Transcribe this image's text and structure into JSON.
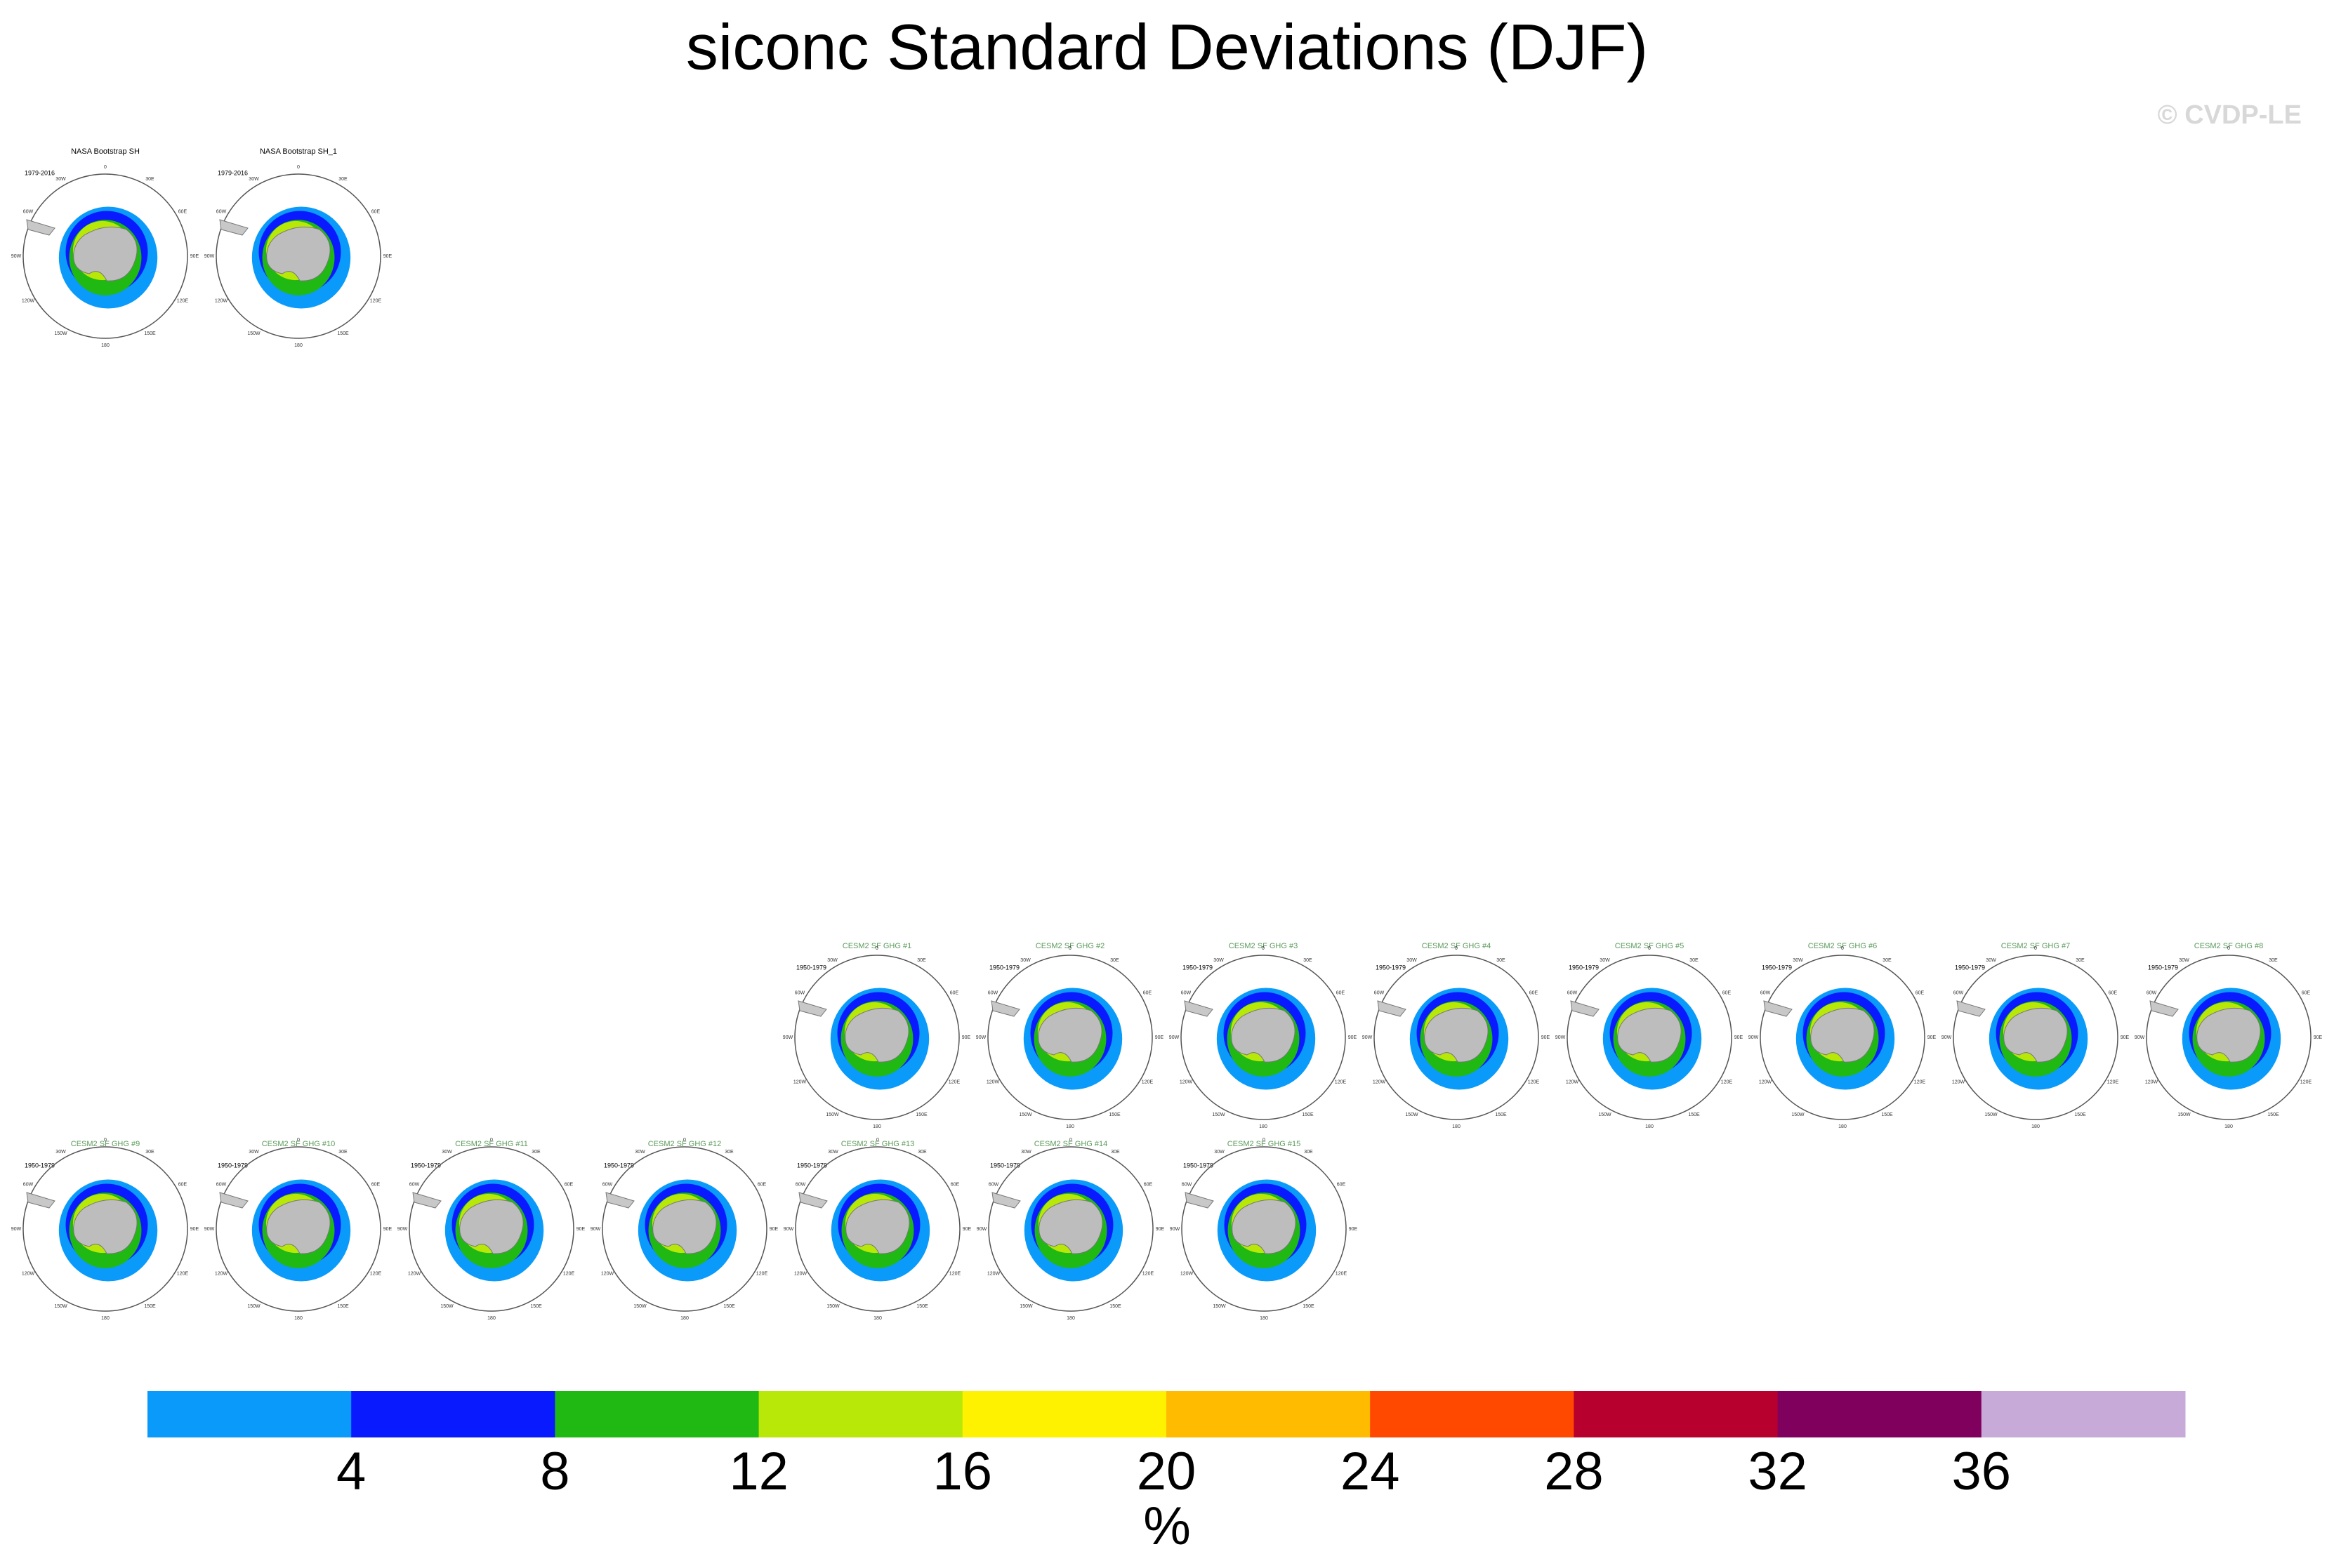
{
  "title": "siconc Standard Deviations (DJF)",
  "watermark": "© CVDP-LE",
  "map_labels": [
    "0",
    "30E",
    "60E",
    "90E",
    "120E",
    "150E",
    "180",
    "150W",
    "120W",
    "90W",
    "60W",
    "30W"
  ],
  "panels": [
    {
      "title": "NASA Bootstrap SH",
      "years": "1979-2016"
    },
    {
      "title": "NASA Bootstrap SH_1",
      "years": "1979-2016"
    },
    {
      "title": "CESM2 SF GHG #1",
      "years": "1950-1979"
    },
    {
      "title": "CESM2 SF GHG #2",
      "years": "1950-1979"
    },
    {
      "title": "CESM2 SF GHG #3",
      "years": "1950-1979"
    },
    {
      "title": "CESM2 SF GHG #4",
      "years": "1950-1979"
    },
    {
      "title": "CESM2 SF GHG #5",
      "years": "1950-1979"
    },
    {
      "title": "CESM2 SF GHG #6",
      "years": "1950-1979"
    },
    {
      "title": "CESM2 SF GHG #7",
      "years": "1950-1979"
    },
    {
      "title": "CESM2 SF GHG #8",
      "years": "1950-1979"
    },
    {
      "title": "CESM2 SF GHG #9",
      "years": "1950-1979"
    },
    {
      "title": "CESM2 SF GHG #10",
      "years": "1950-1979"
    },
    {
      "title": "CESM2 SF GHG #11",
      "years": "1950-1979"
    },
    {
      "title": "CESM2 SF GHG #12",
      "years": "1950-1979"
    },
    {
      "title": "CESM2 SF GHG #13",
      "years": "1950-1979"
    },
    {
      "title": "CESM2 SF GHG #14",
      "years": "1950-1979"
    },
    {
      "title": "CESM2 SF GHG #15",
      "years": "1950-1979"
    }
  ],
  "colorbar": {
    "ticks": [
      4,
      8,
      12,
      16,
      20,
      24,
      28,
      32,
      36
    ],
    "colors": [
      "#0a9bfa",
      "#0a1aff",
      "#20b812",
      "#b8e808",
      "#fff200",
      "#ffbb00",
      "#ff4800",
      "#b8002e",
      "#80005e",
      "#c8aad8"
    ],
    "label": "%"
  }
}
